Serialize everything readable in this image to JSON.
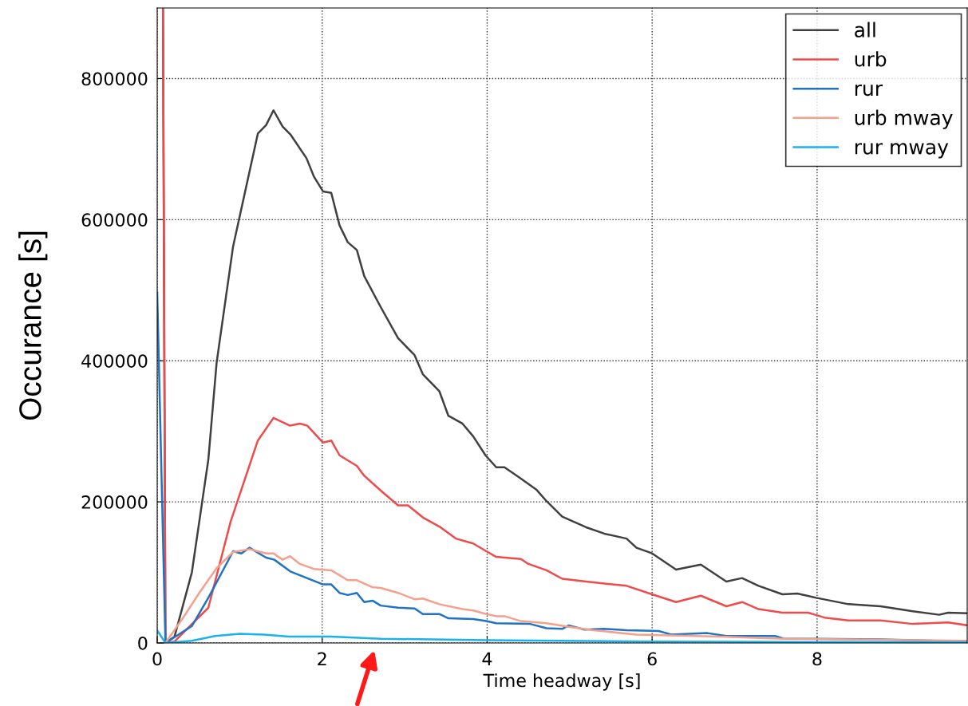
{
  "chart_data": {
    "type": "line",
    "xlabel": "Time headway [s]",
    "ylabel": "Occurance [s]",
    "xlim": [
      0,
      9.82
    ],
    "ylim": [
      0,
      900000
    ],
    "xticks": [
      0,
      2,
      4,
      6,
      8
    ],
    "yticks": [
      0,
      200000,
      400000,
      600000,
      800000
    ],
    "grid": true,
    "legend": "top right",
    "marker": "none",
    "line_style": "solid",
    "series": [
      {
        "name": "all",
        "color": "#404040",
        "x": [
          0.07,
          0.1,
          0.21,
          0.42,
          0.62,
          0.72,
          0.92,
          1.22,
          1.32,
          1.41,
          1.52,
          1.62,
          1.81,
          1.9,
          2.01,
          2.11,
          2.21,
          2.31,
          2.42,
          2.51,
          2.71,
          2.92,
          3.12,
          3.22,
          3.42,
          3.53,
          3.7,
          3.83,
          3.98,
          4.11,
          4.21,
          4.41,
          4.6,
          4.72,
          4.91,
          5.2,
          5.42,
          5.69,
          5.81,
          6.0,
          6.29,
          6.59,
          6.9,
          7.09,
          7.29,
          7.58,
          7.76,
          7.99,
          8.38,
          8.77,
          9.16,
          9.48,
          9.59,
          9.82
        ],
        "values": [
          900000,
          0,
          9000,
          100000,
          260000,
          397000,
          562000,
          722000,
          734000,
          755000,
          732000,
          720000,
          687000,
          661000,
          640000,
          638000,
          592000,
          568000,
          557000,
          520000,
          476000,
          432000,
          408000,
          381000,
          357000,
          322000,
          311000,
          293000,
          266000,
          249000,
          249000,
          233000,
          217000,
          201000,
          179000,
          164000,
          155000,
          148000,
          135000,
          127000,
          104000,
          111000,
          87000,
          92000,
          81000,
          69000,
          70000,
          64000,
          55000,
          52000,
          45000,
          40000,
          43000,
          42000
        ]
      },
      {
        "name": "urb",
        "color": "#ef4b4b",
        "x": [
          0.07,
          0.1,
          0.21,
          0.62,
          0.89,
          1.22,
          1.41,
          1.61,
          1.73,
          1.82,
          2.01,
          2.11,
          2.21,
          2.42,
          2.51,
          2.71,
          2.92,
          3.04,
          3.22,
          3.42,
          3.62,
          3.83,
          3.99,
          4.11,
          4.41,
          4.5,
          4.72,
          4.91,
          5.2,
          5.69,
          6.0,
          6.29,
          6.59,
          6.9,
          7.09,
          7.29,
          7.58,
          7.89,
          8.09,
          8.38,
          8.77,
          9.16,
          9.59,
          9.82
        ],
        "values": [
          900000,
          0,
          2000,
          50000,
          172000,
          287000,
          319000,
          308000,
          311000,
          308000,
          284000,
          287000,
          266000,
          251000,
          237000,
          216000,
          195000,
          195000,
          178000,
          165000,
          148000,
          141000,
          130000,
          122000,
          119000,
          112000,
          103000,
          91000,
          87000,
          81000,
          69000,
          58000,
          67000,
          52000,
          58000,
          48000,
          43000,
          43000,
          36000,
          32000,
          32000,
          27000,
          29000,
          25000
        ]
      },
      {
        "name": "rur",
        "color": "#1f72c4",
        "x": [
          0,
          0.1,
          0.42,
          0.62,
          0.92,
          1.02,
          1.12,
          1.32,
          1.42,
          1.62,
          1.9,
          2.01,
          2.11,
          2.21,
          2.31,
          2.42,
          2.51,
          2.61,
          2.71,
          2.92,
          3.12,
          3.22,
          3.42,
          3.53,
          3.83,
          3.99,
          4.11,
          4.52,
          4.72,
          4.91,
          4.99,
          5.18,
          5.42,
          5.69,
          6.08,
          6.23,
          6.67,
          6.9,
          7.49,
          7.6,
          7.99,
          8.77,
          9.82
        ],
        "values": [
          497000,
          0,
          24000,
          64000,
          130000,
          127000,
          135000,
          121000,
          118000,
          101000,
          88000,
          83000,
          83000,
          71000,
          68000,
          71000,
          58000,
          60000,
          53000,
          50000,
          49000,
          41000,
          41000,
          35000,
          34000,
          31000,
          28000,
          27000,
          21000,
          20000,
          25000,
          19000,
          20000,
          18000,
          17000,
          12000,
          14000,
          10000,
          10000,
          6000,
          6000,
          5000,
          2000
        ]
      },
      {
        "name": "urb mway",
        "color": "#f4a08c",
        "x": [
          0.1,
          0.31,
          0.51,
          0.72,
          0.92,
          1.12,
          1.32,
          1.41,
          1.52,
          1.61,
          1.73,
          1.9,
          2.11,
          2.31,
          2.42,
          2.61,
          2.71,
          2.92,
          3.12,
          3.22,
          3.42,
          3.7,
          3.83,
          3.99,
          4.11,
          4.21,
          4.41,
          4.72,
          4.99,
          5.29,
          5.81,
          6.12,
          6.82,
          7.6,
          9.82
        ],
        "values": [
          0,
          35000,
          71000,
          106000,
          129000,
          133000,
          127000,
          127000,
          118000,
          123000,
          112000,
          105000,
          103000,
          89000,
          89000,
          79000,
          78000,
          71000,
          62000,
          63000,
          55000,
          48000,
          46000,
          41000,
          38000,
          38000,
          31000,
          28000,
          23000,
          18000,
          12000,
          11000,
          9000,
          6000,
          3000
        ]
      },
      {
        "name": "rur mway",
        "color": "#1ab2ec",
        "x": [
          0,
          0.1,
          0.42,
          0.7,
          1.0,
          1.29,
          1.6,
          2.11,
          2.71,
          3.99,
          6.0,
          9.82
        ],
        "values": [
          18000,
          0,
          3000,
          10000,
          13000,
          12000,
          9000,
          9000,
          6000,
          4000,
          2000,
          1000
        ]
      }
    ]
  }
}
